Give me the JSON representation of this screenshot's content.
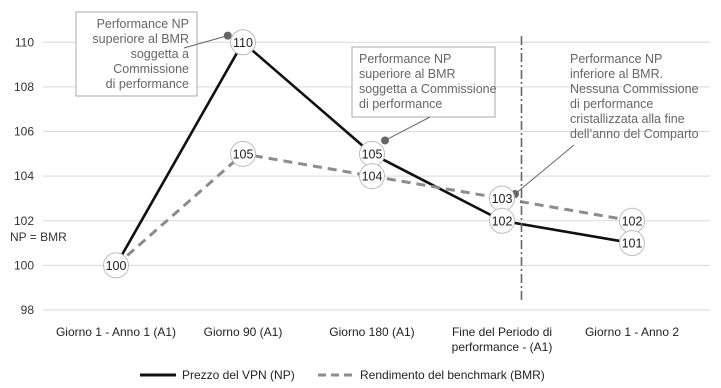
{
  "chart_data": {
    "type": "line",
    "categories": [
      [
        "Giorno 1 - Anno 1 (A1)"
      ],
      [
        "Giorno 90 (A1)"
      ],
      [
        "Giorno 180 (A1)"
      ],
      [
        "Fine del Periodo di",
        "performance - (A1)"
      ],
      [
        "Giorno 1 - Anno 2"
      ]
    ],
    "ylim": [
      98,
      111
    ],
    "yticks": [
      98,
      100,
      102,
      104,
      106,
      108,
      110
    ],
    "grid": true,
    "legend_position": "bottom",
    "series": [
      {
        "name": "Prezzo del VPN (NP)",
        "values": [
          100,
          110,
          105,
          102,
          101
        ],
        "color": "#111111",
        "style": "solid"
      },
      {
        "name": "Rendimento del benchmark (BMR)",
        "values": [
          100,
          105,
          104,
          103,
          102
        ],
        "color": "#8c8c8c",
        "style": "dashed"
      }
    ],
    "point_labels": [
      {
        "text": "100",
        "x": 0,
        "y": 100
      },
      {
        "text": "110",
        "x": 1,
        "y": 110
      },
      {
        "text": "105",
        "x": 1,
        "y": 105
      },
      {
        "text": "105",
        "x": 2,
        "y": 105
      },
      {
        "text": "104",
        "x": 2,
        "y": 104
      },
      {
        "text": "103",
        "x": 3,
        "y": 103
      },
      {
        "text": "102",
        "x": 3,
        "y": 102
      },
      {
        "text": "102",
        "x": 4,
        "y": 102
      },
      {
        "text": "101",
        "x": 4,
        "y": 101
      }
    ],
    "np_bmr_label": "NP = BMR",
    "period_end_line_x": 3.15,
    "annotations": [
      {
        "lines": [
          "Performance NP",
          "superiore al BMR",
          "soggetta a",
          "Commissione",
          "di performance"
        ],
        "boxed": true,
        "point": {
          "x": 0.88,
          "y": 110.3
        }
      },
      {
        "lines": [
          "Performance NP",
          "superiore al BMR",
          "soggetta a Commissione",
          "di performance"
        ],
        "boxed": true,
        "point": {
          "x": 2.1,
          "y": 105.6
        }
      },
      {
        "lines": [
          "Performance NP",
          "inferiore al BMR.",
          "Nessuna Commissione",
          "di performance",
          "cristallizzata alla fine",
          "dell’anno del Comparto"
        ],
        "boxed": false,
        "point": {
          "x": 3.1,
          "y": 103.2
        }
      }
    ]
  }
}
